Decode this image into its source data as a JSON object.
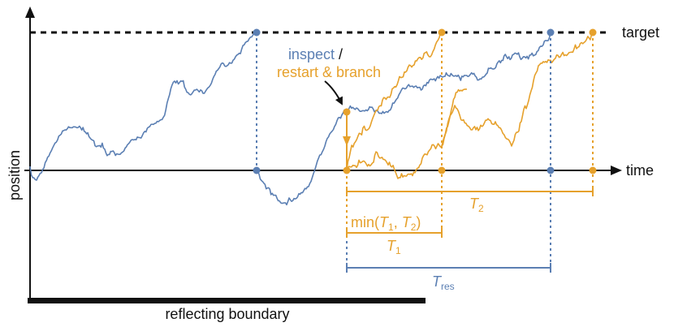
{
  "colors": {
    "blue": "#5b7fb3",
    "orange": "#e6a12c",
    "axis": "#111111",
    "target_line": "#111111"
  },
  "labels": {
    "target": "target",
    "time": "time",
    "position": "position",
    "boundary": "reflecting boundary",
    "inspect": "inspect",
    "inspect_slash": " /",
    "restart_branch": "restart & branch",
    "t2_base": "T",
    "t2_sub": "2",
    "min_prefix": "min(",
    "min_t1": "T",
    "min_t1_sub": "1",
    "min_sep": ", ",
    "min_t2": "T",
    "min_t2_sub": "2",
    "min_suffix": ")",
    "t1_base": "T",
    "t1_sub": "1",
    "tres_base": "T",
    "tres_sub": "res"
  },
  "icons": {
    "time_arrow": "arrow-right-icon",
    "position_arrow": "arrow-up-icon",
    "pointer_arrow": "arrow-down-right-icon"
  }
}
